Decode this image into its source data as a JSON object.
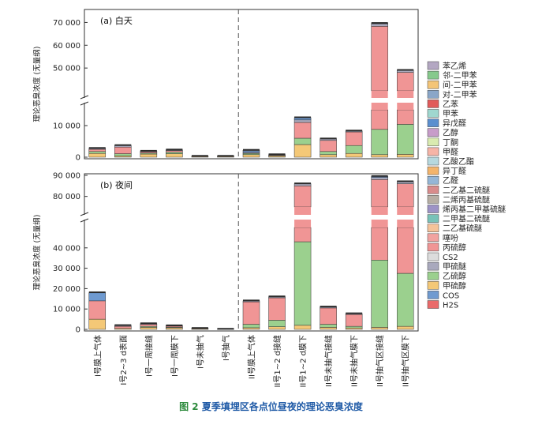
{
  "chart_data": {
    "type": "bar",
    "stacked": true,
    "categories": [
      "I号膜上气体",
      "I号2~3 d表面",
      "I号一周接缝",
      "I号一周膜下",
      "I号未抽气",
      "I号抽气",
      "II号膜上气体",
      "II号1~2 d接缝",
      "II号1~2 d膜下",
      "II号未抽气接缝",
      "II号未抽气膜下",
      "II号抽气区接缝",
      "II号抽气区膜下"
    ],
    "legend": [
      {
        "name": "苯乙烯",
        "color": "#b3a7c2"
      },
      {
        "name": "邻-二甲苯",
        "color": "#86c98c"
      },
      {
        "name": "间-二甲苯",
        "color": "#f4c577"
      },
      {
        "name": "对-二甲苯",
        "color": "#8aa6c8"
      },
      {
        "name": "乙苯",
        "color": "#e15a5a"
      },
      {
        "name": "甲苯",
        "color": "#9fd7cf"
      },
      {
        "name": "异戊醛",
        "color": "#5b8fcf"
      },
      {
        "name": "乙醇",
        "color": "#c79cc9"
      },
      {
        "name": "丁酮",
        "color": "#d9ebb0"
      },
      {
        "name": "甲醛",
        "color": "#f6b4a6"
      },
      {
        "name": "乙酸乙酯",
        "color": "#b6d8de"
      },
      {
        "name": "异丁醛",
        "color": "#f3b46b"
      },
      {
        "name": "乙醛",
        "color": "#95b6d6"
      },
      {
        "name": "二乙基二硫醚",
        "color": "#d88c8c"
      },
      {
        "name": "二烯丙基硫醚",
        "color": "#b7aea4"
      },
      {
        "name": "烯丙基二甲基硫醚",
        "color": "#9d93c6"
      },
      {
        "name": "二甲基二硫醚",
        "color": "#79c2b8"
      },
      {
        "name": "二乙基硫醚",
        "color": "#f5c39a"
      },
      {
        "name": "噻吩",
        "color": "#f1a3a0"
      },
      {
        "name": "丙硫醇",
        "color": "#f09595"
      },
      {
        "name": "CS2",
        "color": "#dcdcdc"
      },
      {
        "name": "甲硫醚",
        "color": "#a9a9bd"
      },
      {
        "name": "乙硫醇",
        "color": "#9bd08e"
      },
      {
        "name": "甲硫醇",
        "color": "#f4c877"
      },
      {
        "name": "COS",
        "color": "#6f9ad0"
      },
      {
        "name": "H2S",
        "color": "#ea6a6a"
      }
    ],
    "panels": [
      {
        "title": "(a) 白天",
        "ylabel": "理论恶臭浓度 (无量纲)",
        "lower_range": [
          0,
          15000
        ],
        "upper_range": [
          40000,
          75000
        ],
        "lower_ticks": [
          0,
          10000
        ],
        "upper_ticks": [
          50000,
          60000,
          70000
        ],
        "tick_labels": {
          "0": "0",
          "10000": "10 000",
          "50000": "50 000",
          "60000": "60 000",
          "70000": "70 000"
        },
        "bars": [
          [
            {
              "s": "甲硫醇",
              "v": 1200
            },
            {
              "s": "乙硫醇",
              "v": 600
            },
            {
              "s": "丙硫醇",
              "v": 700
            },
            {
              "s": "甲硫醚",
              "v": 300
            }
          ],
          [
            {
              "s": "甲硫醇",
              "v": 400
            },
            {
              "s": "乙硫醇",
              "v": 700
            },
            {
              "s": "丙硫醇",
              "v": 2100
            },
            {
              "s": "甲硫醚",
              "v": 500
            }
          ],
          [
            {
              "s": "甲硫醇",
              "v": 1000
            },
            {
              "s": "乙硫醇",
              "v": 300
            },
            {
              "s": "丙硫醇",
              "v": 400
            },
            {
              "s": "甲硫醚",
              "v": 200
            }
          ],
          [
            {
              "s": "甲硫醇",
              "v": 1100
            },
            {
              "s": "乙硫醇",
              "v": 500
            },
            {
              "s": "丙硫醇",
              "v": 500
            },
            {
              "s": "甲硫醚",
              "v": 200
            }
          ],
          [
            {
              "s": "甲硫醇",
              "v": 200
            },
            {
              "s": "丙硫醇",
              "v": 100
            }
          ],
          [
            {
              "s": "甲硫醇",
              "v": 200
            },
            {
              "s": "丙硫醇",
              "v": 100
            }
          ],
          [
            {
              "s": "甲硫醇",
              "v": 800
            },
            {
              "s": "乙硫醇",
              "v": 400
            },
            {
              "s": "丙硫醇",
              "v": 200
            },
            {
              "s": "COS",
              "v": 600
            },
            {
              "s": "甲硫醚",
              "v": 200
            }
          ],
          [
            {
              "s": "甲硫醇",
              "v": 400
            },
            {
              "s": "乙硫醇",
              "v": 200
            },
            {
              "s": "丙硫醇",
              "v": 200
            }
          ],
          [
            {
              "s": "甲硫醇",
              "v": 4000
            },
            {
              "s": "乙硫醇",
              "v": 2000
            },
            {
              "s": "丙硫醇",
              "v": 5000
            },
            {
              "s": "甲硫醚",
              "v": 800
            },
            {
              "s": "COS",
              "v": 700
            }
          ],
          [
            {
              "s": "甲硫醇",
              "v": 800
            },
            {
              "s": "乙硫醇",
              "v": 1000
            },
            {
              "s": "丙硫醇",
              "v": 3500
            },
            {
              "s": "甲硫醚",
              "v": 500
            }
          ],
          [
            {
              "s": "甲硫醇",
              "v": 1200
            },
            {
              "s": "乙硫醇",
              "v": 2500
            },
            {
              "s": "丙硫醇",
              "v": 4300
            },
            {
              "s": "甲硫醚",
              "v": 300
            }
          ],
          [
            {
              "s": "甲硫醇",
              "v": 800
            },
            {
              "s": "乙硫醇",
              "v": 8000
            },
            {
              "s": "丙硫醇",
              "v": 59500
            },
            {
              "s": "甲硫醚",
              "v": 1100
            },
            {
              "s": "COS",
              "v": 200
            }
          ],
          [
            {
              "s": "甲硫醇",
              "v": 900
            },
            {
              "s": "乙硫醇",
              "v": 9500
            },
            {
              "s": "丙硫醇",
              "v": 37700
            },
            {
              "s": "甲硫醚",
              "v": 900
            }
          ]
        ]
      },
      {
        "title": "(b) 夜间",
        "ylabel": "理论恶臭浓度 (无量纲)",
        "lower_range": [
          0,
          50000
        ],
        "upper_range": [
          75000,
          90000
        ],
        "lower_ticks": [
          0,
          10000,
          20000,
          30000,
          40000
        ],
        "upper_ticks": [
          80000,
          90000
        ],
        "tick_labels": {
          "0": "0",
          "10000": "10 000",
          "20000": "20 000",
          "30000": "30 000",
          "40000": "40 000",
          "80000": "80 000",
          "90000": "90 000"
        },
        "bars": [
          [
            {
              "s": "甲硫醇",
              "v": 5000
            },
            {
              "s": "丙硫醇",
              "v": 9000
            },
            {
              "s": "COS",
              "v": 4000
            }
          ],
          [
            {
              "s": "甲硫醇",
              "v": 500
            },
            {
              "s": "丙硫醇",
              "v": 1000
            },
            {
              "s": "甲硫醚",
              "v": 400
            }
          ],
          [
            {
              "s": "甲硫醇",
              "v": 1000
            },
            {
              "s": "乙硫醇",
              "v": 500
            },
            {
              "s": "丙硫醇",
              "v": 1000
            },
            {
              "s": "甲硫醚",
              "v": 300
            }
          ],
          [
            {
              "s": "甲硫醇",
              "v": 800
            },
            {
              "s": "乙硫醇",
              "v": 300
            },
            {
              "s": "丙硫醇",
              "v": 500
            },
            {
              "s": "甲硫醚",
              "v": 200
            }
          ],
          [
            {
              "s": "甲硫醇",
              "v": 300
            },
            {
              "s": "丙硫醇",
              "v": 200
            }
          ],
          [
            {
              "s": "甲硫醇",
              "v": 100
            }
          ],
          [
            {
              "s": "甲硫醇",
              "v": 800
            },
            {
              "s": "乙硫醇",
              "v": 1700
            },
            {
              "s": "丙硫醇",
              "v": 11000
            },
            {
              "s": "甲硫醚",
              "v": 500
            }
          ],
          [
            {
              "s": "甲硫醇",
              "v": 1300
            },
            {
              "s": "乙硫醇",
              "v": 3200
            },
            {
              "s": "丙硫醇",
              "v": 11000
            },
            {
              "s": "甲硫醚",
              "v": 500
            }
          ],
          [
            {
              "s": "甲硫醇",
              "v": 2000
            },
            {
              "s": "乙硫醇",
              "v": 41000
            },
            {
              "s": "丙硫醇",
              "v": 42000
            },
            {
              "s": "甲硫醚",
              "v": 1000
            }
          ],
          [
            {
              "s": "甲硫醇",
              "v": 1000
            },
            {
              "s": "乙硫醇",
              "v": 1500
            },
            {
              "s": "丙硫醇",
              "v": 8000
            },
            {
              "s": "甲硫醚",
              "v": 500
            }
          ],
          [
            {
              "s": "甲硫醇",
              "v": 700
            },
            {
              "s": "乙硫醇",
              "v": 800
            },
            {
              "s": "丙硫醇",
              "v": 5800
            },
            {
              "s": "甲硫醚",
              "v": 400
            }
          ],
          [
            {
              "s": "甲硫醇",
              "v": 1000
            },
            {
              "s": "乙硫醇",
              "v": 33000
            },
            {
              "s": "丙硫醇",
              "v": 54000
            },
            {
              "s": "甲硫醚",
              "v": 1000
            },
            {
              "s": "COS",
              "v": 500
            }
          ],
          [
            {
              "s": "甲硫醇",
              "v": 1500
            },
            {
              "s": "乙硫醇",
              "v": 26000
            },
            {
              "s": "丙硫醇",
              "v": 58500
            },
            {
              "s": "甲硫醚",
              "v": 1000
            }
          ]
        ]
      }
    ]
  },
  "caption": {
    "fig": "图 2",
    "text": "夏季填埋区各点位昼夜的理论恶臭浓度"
  }
}
